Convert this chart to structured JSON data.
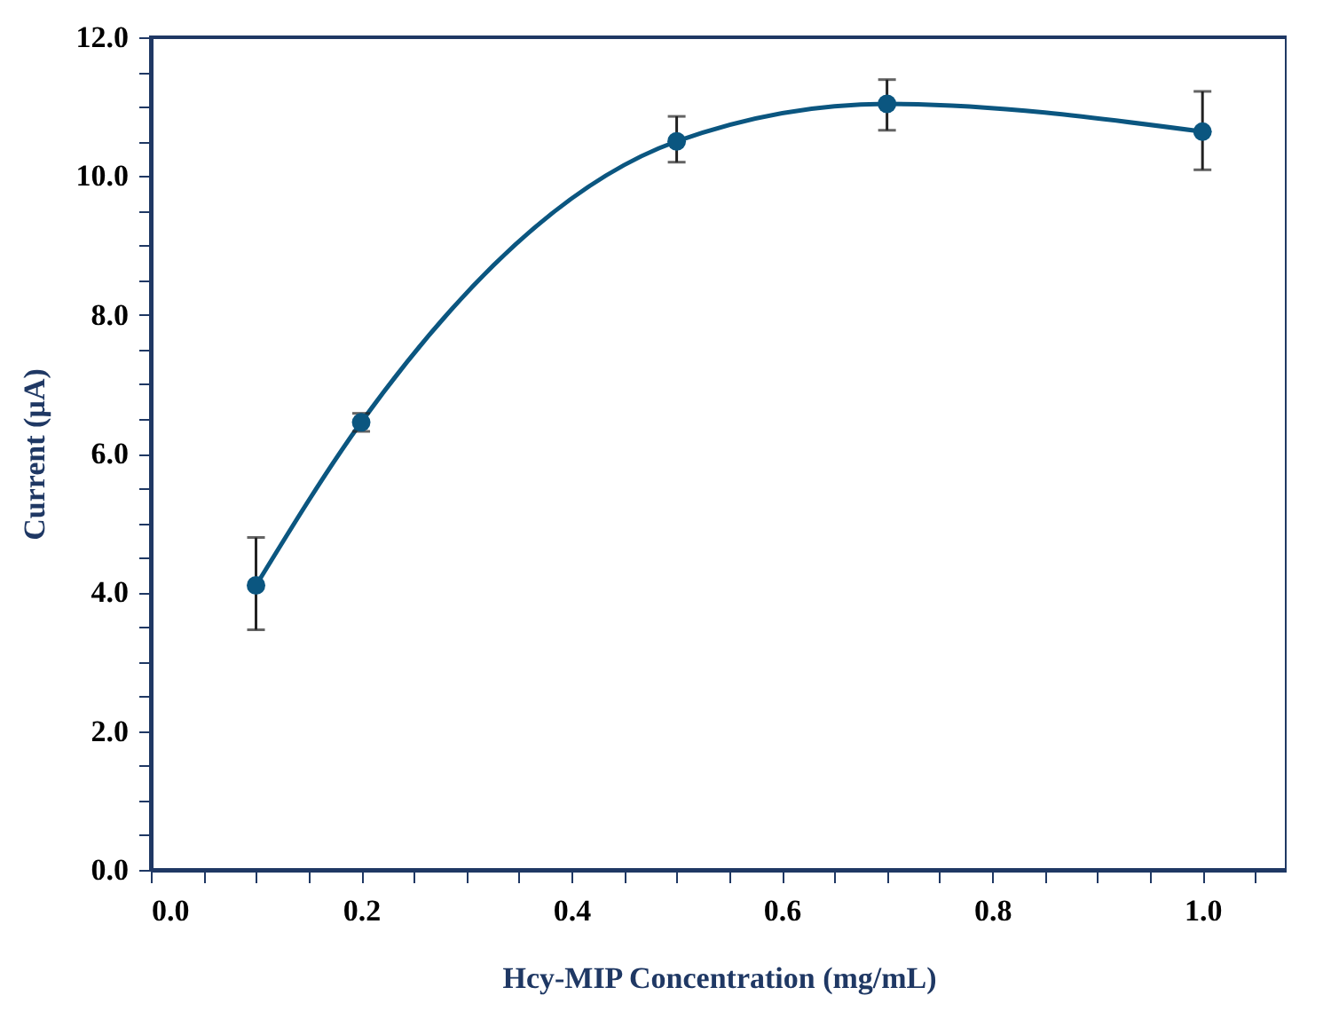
{
  "chart_data": {
    "type": "line",
    "xlabel": "Hcy-MIP Concentration (mg/mL)",
    "ylabel": "Current (µA)",
    "x": [
      0.1,
      0.2,
      0.5,
      0.7,
      1.0
    ],
    "series": [
      {
        "color": "#0b5680",
        "values": [
          4.1,
          6.45,
          10.5,
          11.04,
          10.64
        ],
        "errors": [
          [
            3.46,
            4.79
          ],
          [
            6.32,
            6.58
          ],
          [
            10.2,
            10.86
          ],
          [
            10.66,
            11.39
          ],
          [
            10.09,
            11.22
          ]
        ]
      }
    ],
    "xlim": [
      0,
      1.08
    ],
    "xticks": [
      {
        "value": 0,
        "label": "0.0"
      },
      {
        "value": 0.05,
        "label": null
      },
      {
        "value": 0.1,
        "label": null
      },
      {
        "value": 0.15,
        "label": null
      },
      {
        "value": 0.2,
        "label": "0.2"
      },
      {
        "value": 0.25,
        "label": null
      },
      {
        "value": 0.3,
        "label": null
      },
      {
        "value": 0.35,
        "label": null
      },
      {
        "value": 0.4,
        "label": "0.4"
      },
      {
        "value": 0.45,
        "label": null
      },
      {
        "value": 0.5,
        "label": null
      },
      {
        "value": 0.55,
        "label": null
      },
      {
        "value": 0.6,
        "label": "0.6"
      },
      {
        "value": 0.65,
        "label": null
      },
      {
        "value": 0.7,
        "label": null
      },
      {
        "value": 0.75,
        "label": null
      },
      {
        "value": 0.8,
        "label": "0.8"
      },
      {
        "value": 0.85,
        "label": null
      },
      {
        "value": 0.9,
        "label": null
      },
      {
        "value": 0.95,
        "label": null
      },
      {
        "value": 1.0,
        "label": "1.0"
      },
      {
        "value": 1.05,
        "label": null
      }
    ],
    "ylim": [
      0,
      12
    ],
    "yticks": [
      {
        "value": 0,
        "label": "0.0"
      },
      {
        "value": 0.5,
        "label": null
      },
      {
        "value": 1,
        "label": null
      },
      {
        "value": 1.5,
        "label": null
      },
      {
        "value": 2,
        "label": "2.0"
      },
      {
        "value": 2.5,
        "label": null
      },
      {
        "value": 3,
        "label": null
      },
      {
        "value": 3.5,
        "label": null
      },
      {
        "value": 4,
        "label": "4.0"
      },
      {
        "value": 4.5,
        "label": null
      },
      {
        "value": 5,
        "label": null
      },
      {
        "value": 5.5,
        "label": null
      },
      {
        "value": 6,
        "label": "6.0"
      },
      {
        "value": 6.5,
        "label": null
      },
      {
        "value": 7,
        "label": null
      },
      {
        "value": 7.5,
        "label": null
      },
      {
        "value": 8,
        "label": "8.0"
      },
      {
        "value": 8.5,
        "label": null
      },
      {
        "value": 9,
        "label": null
      },
      {
        "value": 9.5,
        "label": null
      },
      {
        "value": 10,
        "label": "10.0"
      },
      {
        "value": 10.5,
        "label": null
      },
      {
        "value": 11,
        "label": null
      },
      {
        "value": 11.5,
        "label": null
      },
      {
        "value": 12,
        "label": "12.0"
      }
    ],
    "marker": "circle",
    "grid": false
  }
}
